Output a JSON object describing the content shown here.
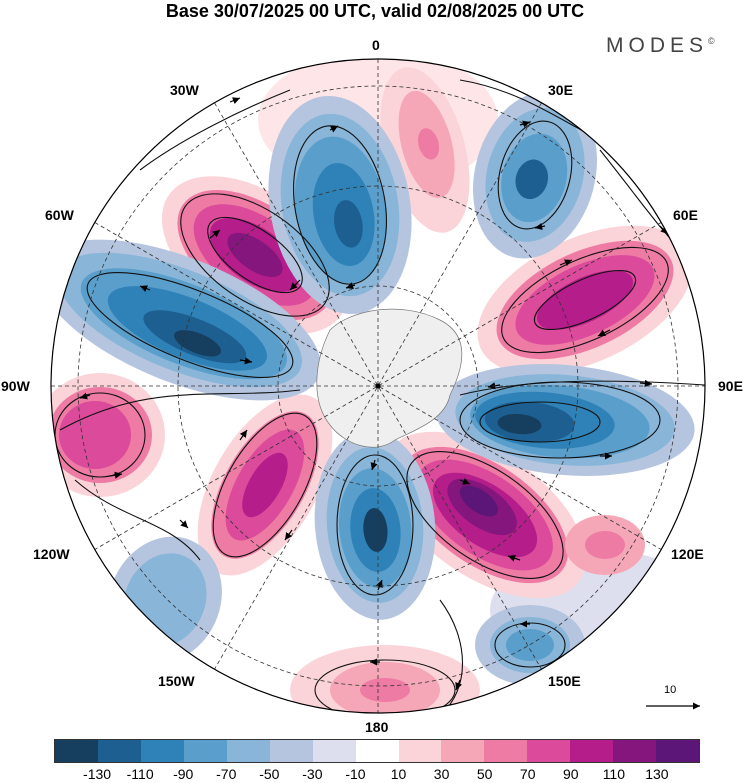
{
  "title": "Base 30/07/2025 00 UTC, valid 02/08/2025 00 UTC",
  "brand": "MODES",
  "brand_mark": "©",
  "longitudes": {
    "top": "0",
    "lon30e": "30E",
    "lon60e": "60E",
    "lon90e": "90E",
    "lon120e": "120E",
    "lon150e": "150E",
    "bottom": "180",
    "lon150w": "150W",
    "lon120w": "120W",
    "lon90w": "90W",
    "lon60w": "60W",
    "lon30w": "30W"
  },
  "reference_vector_label": "10",
  "colorbar": {
    "colors": [
      "#163e5e",
      "#1d5f91",
      "#2f82b8",
      "#5a9ecb",
      "#89b5d8",
      "#b5c5df",
      "#dedfee",
      "#ffffff",
      "#fbd4d9",
      "#f5a7b7",
      "#ee7ba3",
      "#dc4a9b",
      "#b41d8a",
      "#84167d",
      "#5b1677"
    ],
    "ticks": [
      "-130",
      "-110",
      "-90",
      "-70",
      "-50",
      "-30",
      "-10",
      "10",
      "30",
      "50",
      "70",
      "90",
      "110",
      "130"
    ]
  },
  "colors": {
    "accent_negative": "#1d5f91",
    "accent_positive": "#b41d8a"
  }
}
